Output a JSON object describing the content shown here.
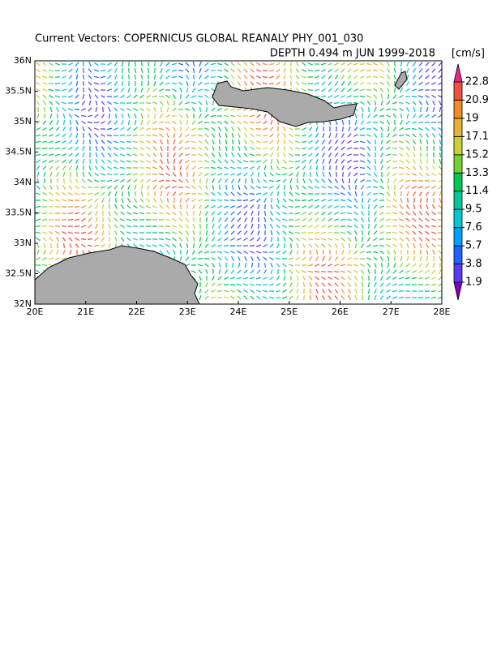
{
  "chart_data": {
    "type": "vector-map",
    "title": "Current Vectors: COPERNICUS GLOBAL REANALY PHY_001_030",
    "subtitle": "DEPTH 0.494 m  JUN 1999-2018",
    "units": "[cm/s]",
    "xlim": [
      20,
      28
    ],
    "xticks": [
      {
        "value": 20,
        "label": "20E"
      },
      {
        "value": 21,
        "label": "21E"
      },
      {
        "value": 22,
        "label": "22E"
      },
      {
        "value": 23,
        "label": "23E"
      },
      {
        "value": 24,
        "label": "24E"
      },
      {
        "value": 25,
        "label": "25E"
      },
      {
        "value": 26,
        "label": "26E"
      },
      {
        "value": 27,
        "label": "27E"
      },
      {
        "value": 28,
        "label": "28E"
      }
    ],
    "ylim": [
      32,
      36
    ],
    "yticks": [
      {
        "value": 32,
        "label": "32N"
      },
      {
        "value": 32.5,
        "label": "32.5N"
      },
      {
        "value": 33,
        "label": "33N"
      },
      {
        "value": 33.5,
        "label": "33.5N"
      },
      {
        "value": 34,
        "label": "34N"
      },
      {
        "value": 34.5,
        "label": "34.5N"
      },
      {
        "value": 35,
        "label": "35N"
      },
      {
        "value": 35.5,
        "label": "35.5N"
      },
      {
        "value": 36,
        "label": "36N"
      }
    ],
    "colorbar": {
      "levels": [
        1.9,
        3.8,
        5.7,
        7.6,
        9.5,
        11.4,
        13.3,
        15.2,
        17.1,
        19,
        20.9,
        22.8
      ],
      "colors": [
        "#8000c0",
        "#5a3cf0",
        "#1e64ff",
        "#00a0ff",
        "#00c8d2",
        "#00c896",
        "#00c850",
        "#78d232",
        "#c8d232",
        "#e6b432",
        "#f08c28",
        "#f0503c",
        "#e6288c"
      ]
    }
  }
}
